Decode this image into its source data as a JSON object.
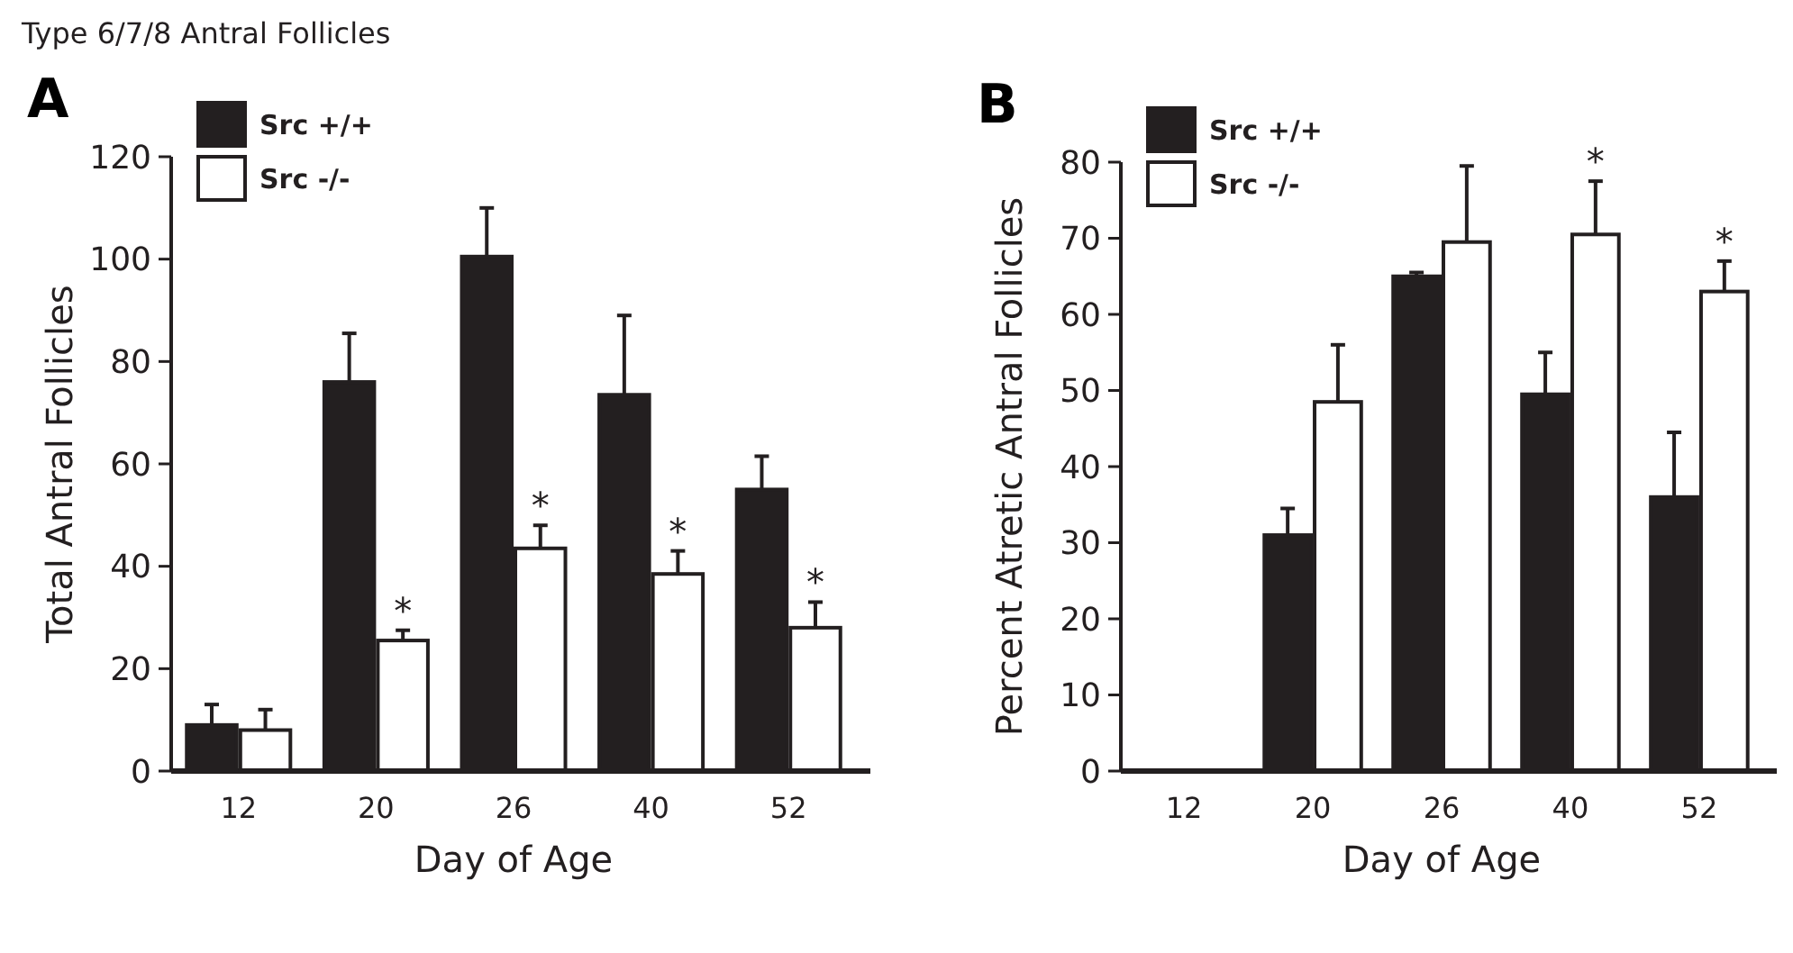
{
  "chart_data": [
    {
      "type": "bar",
      "title": "A",
      "ylabel": "Total Antral Follicles",
      "xlabel": "Day of Age",
      "categories": [
        "12",
        "20",
        "26",
        "40",
        "52"
      ],
      "ylim": [
        0,
        120
      ],
      "yticks": [
        0,
        20,
        40,
        60,
        80,
        100,
        120
      ],
      "legend": "top left",
      "series": [
        {
          "name": "Src +/+",
          "color": "#231f20",
          "values": [
            9,
            76,
            100.5,
            73.5,
            55
          ],
          "errors": [
            4,
            9.5,
            9.5,
            15.5,
            6.5
          ]
        },
        {
          "name": "Src -/-",
          "color": "#ffffff",
          "values": [
            8,
            25.5,
            43.5,
            38.5,
            28
          ],
          "errors": [
            4,
            2,
            4.5,
            4.5,
            5
          ]
        }
      ],
      "annotations": [
        "Type 6/7/8 Antral Follicles",
        {
          "text": "*",
          "x": "20",
          "y": 25.5
        },
        {
          "text": "*",
          "x": "26",
          "y": 43.5
        },
        {
          "text": "*",
          "x": "40",
          "y": 38.5
        },
        {
          "text": "*",
          "x": "52",
          "y": 28
        }
      ]
    },
    {
      "type": "bar",
      "title": "B",
      "ylabel": "Percent Atretic Antral Follicles",
      "xlabel": "Day of Age",
      "categories": [
        "12",
        "20",
        "26",
        "40",
        "52"
      ],
      "ylim": [
        0,
        80
      ],
      "yticks": [
        0,
        10,
        20,
        30,
        40,
        50,
        60,
        70,
        80
      ],
      "legend": "top left",
      "series": [
        {
          "name": "Src +/+",
          "color": "#231f20",
          "values": [
            null,
            31,
            65,
            49.5,
            36
          ],
          "errors": [
            null,
            3.5,
            0.5,
            5.5,
            8.5
          ]
        },
        {
          "name": "Src -/-",
          "color": "#ffffff",
          "values": [
            null,
            48.5,
            69.5,
            70.5,
            63
          ],
          "errors": [
            null,
            7.5,
            10,
            7,
            4
          ]
        }
      ],
      "annotations": [
        {
          "text": "*",
          "x": "40",
          "y": 70.5
        },
        {
          "text": "*",
          "x": "52",
          "y": 63
        }
      ]
    }
  ]
}
